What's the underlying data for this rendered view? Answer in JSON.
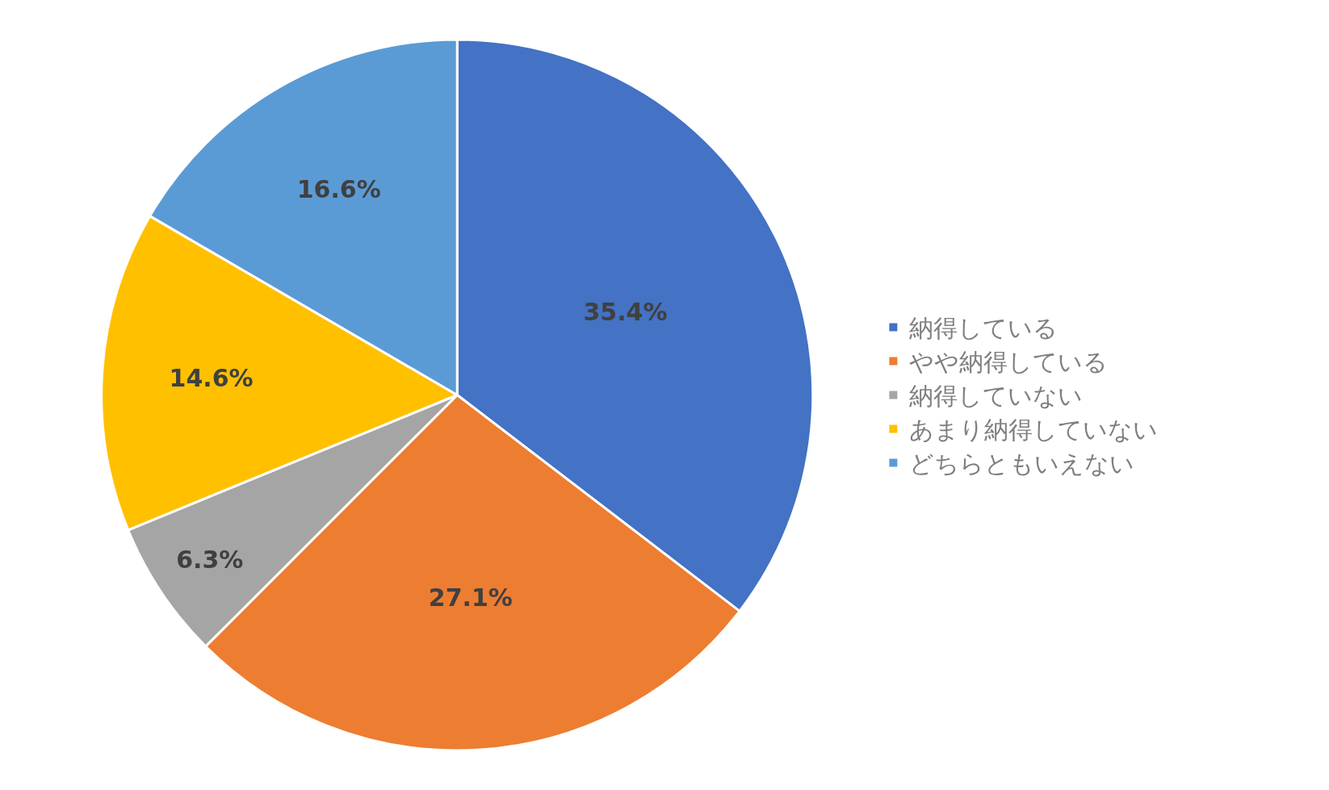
{
  "chart_data": {
    "type": "pie",
    "categories": [
      "納得している",
      "やや納得している",
      "納得していない",
      "あまり納得していない",
      "どちらともいえない"
    ],
    "values": [
      35.4,
      27.1,
      6.3,
      14.6,
      16.6
    ],
    "value_labels": [
      "35.4%",
      "27.1%",
      "6.3%",
      "14.6%",
      "16.6%"
    ],
    "colors": [
      "#4472c4",
      "#ed7d31",
      "#a5a5a5",
      "#ffc000",
      "#5b9bd5"
    ],
    "legend": "right"
  }
}
